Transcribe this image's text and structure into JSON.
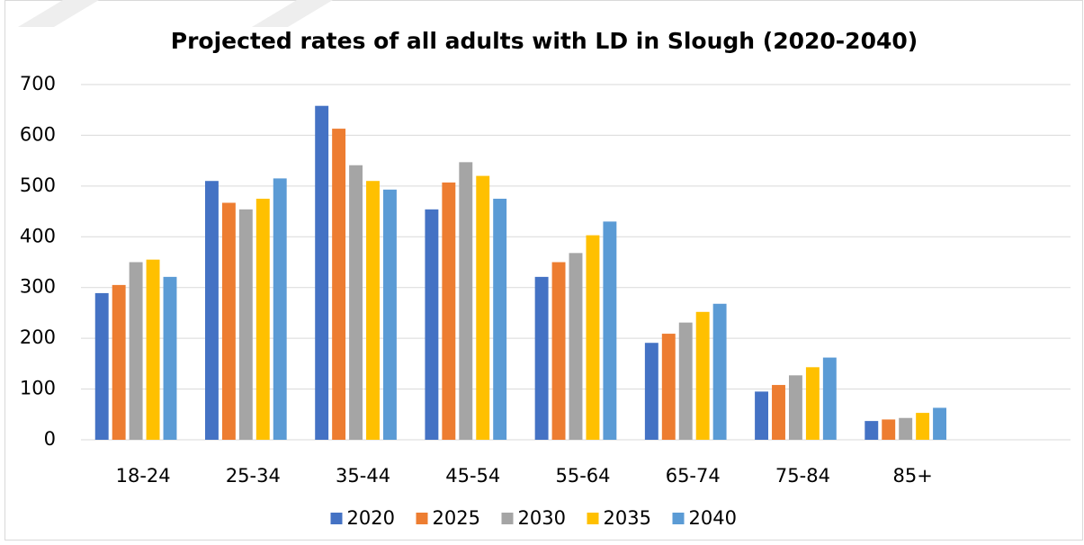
{
  "chart_data": {
    "type": "bar",
    "title": "Projected rates of all adults with LD in Slough (2020-2040)",
    "categories": [
      "18-24",
      "25-34",
      "35-44",
      "45-54",
      "55-64",
      "65-74",
      "75-84",
      "85+",
      null
    ],
    "series": [
      {
        "name": "2020",
        "color": "#4472c4",
        "values": [
          289,
          510,
          658,
          454,
          321,
          191,
          95,
          37,
          null
        ]
      },
      {
        "name": "2025",
        "color": "#ed7d31",
        "values": [
          305,
          467,
          613,
          507,
          350,
          209,
          108,
          40,
          null
        ]
      },
      {
        "name": "2030",
        "color": "#a5a5a5",
        "values": [
          350,
          454,
          541,
          547,
          368,
          231,
          127,
          43,
          null
        ]
      },
      {
        "name": "2035",
        "color": "#ffc000",
        "values": [
          355,
          475,
          510,
          520,
          403,
          252,
          143,
          53,
          null
        ]
      },
      {
        "name": "2040",
        "color": "#5b9bd5",
        "values": [
          321,
          515,
          493,
          475,
          430,
          268,
          162,
          63,
          null
        ]
      }
    ],
    "ylim": [
      0,
      700
    ],
    "yticks": [
      0,
      100,
      200,
      300,
      400,
      500,
      600,
      700
    ],
    "grid": true,
    "legend": "bottom"
  }
}
